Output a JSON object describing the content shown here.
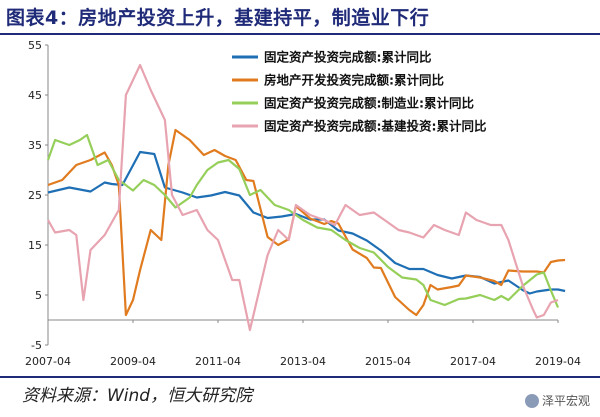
{
  "title": "图表4：房地产投资上升，基建持平，制造业下行",
  "source": "资料来源：Wind，恒大研究院",
  "watermark": "泽平宏观",
  "chart_data": {
    "type": "line",
    "x_ticks": [
      "2007-04",
      "2009-04",
      "2011-04",
      "2013-04",
      "2015-04",
      "2017-04",
      "2019-04"
    ],
    "ylim": [
      -5,
      55
    ],
    "y_ticks": [
      -5,
      5,
      15,
      25,
      35,
      45,
      55
    ],
    "grid": false,
    "legend_position": "top-right",
    "colors": {
      "固定资产投资完成额:累计同比": "#1f6fb5",
      "房地产开发投资完成额:累计同比": "#e07b1f",
      "固定资产投资完成额:制造业:累计同比": "#95cf5a",
      "固定资产投资完成额:基建投资:累计同比": "#e8a3b0"
    },
    "series": [
      {
        "name": "固定资产投资完成额:累计同比",
        "points": [
          [
            "2007-04",
            25.5
          ],
          [
            "2007-10",
            26.5
          ],
          [
            "2008-04",
            25.7
          ],
          [
            "2008-08",
            27.5
          ],
          [
            "2008-10",
            27.2
          ],
          [
            "2009-01",
            27
          ],
          [
            "2009-06",
            33.6
          ],
          [
            "2009-10",
            33.2
          ],
          [
            "2010-01",
            26.5
          ],
          [
            "2010-06",
            25.5
          ],
          [
            "2010-10",
            24.5
          ],
          [
            "2011-02",
            24.9
          ],
          [
            "2011-06",
            25.6
          ],
          [
            "2011-10",
            24.9
          ],
          [
            "2012-02",
            21.5
          ],
          [
            "2012-06",
            20.4
          ],
          [
            "2012-10",
            20.7
          ],
          [
            "2013-02",
            21.2
          ],
          [
            "2013-06",
            20.1
          ],
          [
            "2013-10",
            20.1
          ],
          [
            "2014-02",
            17.9
          ],
          [
            "2014-06",
            17.3
          ],
          [
            "2014-10",
            15.9
          ],
          [
            "2015-02",
            13.9
          ],
          [
            "2015-06",
            11.4
          ],
          [
            "2015-10",
            10.2
          ],
          [
            "2016-02",
            10.2
          ],
          [
            "2016-06",
            9
          ],
          [
            "2016-10",
            8.3
          ],
          [
            "2017-02",
            8.9
          ],
          [
            "2017-06",
            8.6
          ],
          [
            "2017-10",
            7.3
          ],
          [
            "2018-02",
            7.9
          ],
          [
            "2018-06",
            6
          ],
          [
            "2018-08",
            5.3
          ],
          [
            "2018-10",
            5.7
          ],
          [
            "2019-02",
            6.1
          ],
          [
            "2019-04",
            6.1
          ],
          [
            "2019-06",
            5.8
          ]
        ]
      },
      {
        "name": "房地产开发投资完成额:累计同比",
        "points": [
          [
            "2007-04",
            27
          ],
          [
            "2007-08",
            28
          ],
          [
            "2007-12",
            31
          ],
          [
            "2008-04",
            32
          ],
          [
            "2008-08",
            33.5
          ],
          [
            "2008-10",
            31
          ],
          [
            "2008-12",
            27
          ],
          [
            "2009-02",
            1
          ],
          [
            "2009-04",
            4
          ],
          [
            "2009-06",
            10
          ],
          [
            "2009-09",
            18
          ],
          [
            "2009-12",
            16
          ],
          [
            "2010-02",
            31
          ],
          [
            "2010-04",
            38
          ],
          [
            "2010-08",
            36
          ],
          [
            "2010-12",
            33
          ],
          [
            "2011-03",
            34
          ],
          [
            "2011-06",
            32.8
          ],
          [
            "2011-09",
            32
          ],
          [
            "2011-12",
            28
          ],
          [
            "2012-02",
            27.8
          ],
          [
            "2012-06",
            16.6
          ],
          [
            "2012-09",
            15
          ],
          [
            "2012-12",
            16.2
          ],
          [
            "2013-02",
            22.8
          ],
          [
            "2013-06",
            20.3
          ],
          [
            "2013-10",
            19.2
          ],
          [
            "2013-12",
            19.8
          ],
          [
            "2014-02",
            19.3
          ],
          [
            "2014-06",
            14.1
          ],
          [
            "2014-10",
            12.4
          ],
          [
            "2014-12",
            10.5
          ],
          [
            "2015-02",
            10.4
          ],
          [
            "2015-06",
            4.6
          ],
          [
            "2015-10",
            2
          ],
          [
            "2015-12",
            1
          ],
          [
            "2016-02",
            3
          ],
          [
            "2016-04",
            7
          ],
          [
            "2016-06",
            6.1
          ],
          [
            "2016-10",
            6.6
          ],
          [
            "2016-12",
            6.9
          ],
          [
            "2017-02",
            8.9
          ],
          [
            "2017-06",
            8.5
          ],
          [
            "2017-10",
            7.8
          ],
          [
            "2017-12",
            7
          ],
          [
            "2018-02",
            9.9
          ],
          [
            "2018-06",
            9.7
          ],
          [
            "2018-10",
            9.7
          ],
          [
            "2018-12",
            9.5
          ],
          [
            "2019-02",
            11.6
          ],
          [
            "2019-04",
            11.9
          ],
          [
            "2019-06",
            12
          ]
        ]
      },
      {
        "name": "固定资产投资完成额:制造业:累计同比",
        "points": [
          [
            "2007-04",
            32
          ],
          [
            "2007-06",
            36
          ],
          [
            "2007-10",
            35
          ],
          [
            "2008-01",
            36
          ],
          [
            "2008-03",
            37
          ],
          [
            "2008-06",
            31
          ],
          [
            "2008-09",
            32
          ],
          [
            "2008-12",
            28
          ],
          [
            "2009-04",
            25.9
          ],
          [
            "2009-07",
            28
          ],
          [
            "2009-10",
            27
          ],
          [
            "2010-01",
            25
          ],
          [
            "2010-04",
            22.5
          ],
          [
            "2010-08",
            24.5
          ],
          [
            "2010-10",
            27
          ],
          [
            "2011-01",
            30
          ],
          [
            "2011-04",
            31.5
          ],
          [
            "2011-07",
            32
          ],
          [
            "2011-10",
            30.2
          ],
          [
            "2012-01",
            25
          ],
          [
            "2012-04",
            26
          ],
          [
            "2012-08",
            23
          ],
          [
            "2012-12",
            22
          ],
          [
            "2013-04",
            20
          ],
          [
            "2013-08",
            18.5
          ],
          [
            "2013-12",
            18
          ],
          [
            "2014-04",
            16
          ],
          [
            "2014-08",
            14.4
          ],
          [
            "2014-12",
            13.5
          ],
          [
            "2015-04",
            10.6
          ],
          [
            "2015-08",
            8.5
          ],
          [
            "2015-12",
            8.1
          ],
          [
            "2016-02",
            7
          ],
          [
            "2016-04",
            4
          ],
          [
            "2016-08",
            3
          ],
          [
            "2016-12",
            4.2
          ],
          [
            "2017-02",
            4.3
          ],
          [
            "2017-06",
            5
          ],
          [
            "2017-10",
            4
          ],
          [
            "2017-12",
            4.8
          ],
          [
            "2018-02",
            4
          ],
          [
            "2018-06",
            6.8
          ],
          [
            "2018-10",
            9.1
          ],
          [
            "2018-12",
            9.5
          ],
          [
            "2019-02",
            5.9
          ],
          [
            "2019-04",
            2.5
          ]
        ]
      },
      {
        "name": "固定资产投资完成额:基建投资:累计同比",
        "points": [
          [
            "2007-04",
            20
          ],
          [
            "2007-06",
            17.5
          ],
          [
            "2007-10",
            18
          ],
          [
            "2007-12",
            17
          ],
          [
            "2008-02",
            4
          ],
          [
            "2008-04",
            14
          ],
          [
            "2008-08",
            17
          ],
          [
            "2008-12",
            22
          ],
          [
            "2009-02",
            45
          ],
          [
            "2009-04",
            48
          ],
          [
            "2009-06",
            51
          ],
          [
            "2009-09",
            46
          ],
          [
            "2010-01",
            40
          ],
          [
            "2010-03",
            25
          ],
          [
            "2010-06",
            21
          ],
          [
            "2010-10",
            22
          ],
          [
            "2011-01",
            18
          ],
          [
            "2011-04",
            16
          ],
          [
            "2011-08",
            8
          ],
          [
            "2011-10",
            8
          ],
          [
            "2012-01",
            -2
          ],
          [
            "2012-03",
            4
          ],
          [
            "2012-06",
            13
          ],
          [
            "2012-09",
            18
          ],
          [
            "2012-12",
            16
          ],
          [
            "2013-02",
            23
          ],
          [
            "2013-06",
            21
          ],
          [
            "2013-10",
            20
          ],
          [
            "2014-01",
            19
          ],
          [
            "2014-04",
            23
          ],
          [
            "2014-08",
            21
          ],
          [
            "2014-12",
            21.5
          ],
          [
            "2015-03",
            20
          ],
          [
            "2015-07",
            18
          ],
          [
            "2015-10",
            17.5
          ],
          [
            "2015-12",
            17
          ],
          [
            "2016-02",
            16.5
          ],
          [
            "2016-05",
            19
          ],
          [
            "2016-08",
            18
          ],
          [
            "2016-12",
            17
          ],
          [
            "2017-02",
            21.5
          ],
          [
            "2017-05",
            20
          ],
          [
            "2017-09",
            19
          ],
          [
            "2017-12",
            19
          ],
          [
            "2018-02",
            16
          ],
          [
            "2018-06",
            7
          ],
          [
            "2018-09",
            2
          ],
          [
            "2018-10",
            0.5
          ],
          [
            "2018-12",
            1
          ],
          [
            "2019-02",
            3.5
          ],
          [
            "2019-04",
            4
          ]
        ]
      }
    ]
  }
}
